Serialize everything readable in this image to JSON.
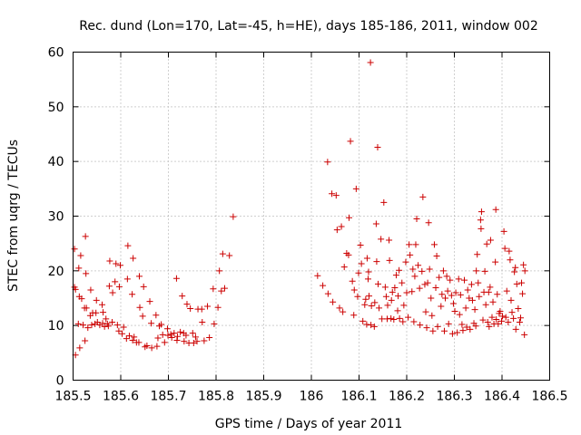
{
  "chart_data": {
    "type": "scatter",
    "title": "Rec. dund (Lon=170, Lat=-45, h=HE), days 185-186, 2011, window 002",
    "xlabel": "GPS time / Days of year 2011",
    "ylabel": "STEC from uqrg / TECUs",
    "xlim": [
      185.5,
      186.5
    ],
    "ylim": [
      0,
      60
    ],
    "grid": true,
    "marker": "plus",
    "color": "#cc0000",
    "xticks": [
      "185.5",
      "185.6",
      "185.7",
      "185.8",
      "185.9",
      "186",
      "186.1",
      "186.2",
      "186.3",
      "186.4",
      "186.5"
    ],
    "yticks": [
      "0",
      "10",
      "20",
      "30",
      "40",
      "50",
      "60"
    ],
    "series": [
      {
        "name": "STEC",
        "points": [
          [
            185.503,
            24.0
          ],
          [
            185.503,
            17.0
          ],
          [
            185.505,
            16.6
          ],
          [
            185.505,
            4.6
          ],
          [
            185.511,
            10.3
          ],
          [
            185.512,
            20.5
          ],
          [
            185.513,
            15.3
          ],
          [
            185.514,
            5.9
          ],
          [
            185.516,
            22.8
          ],
          [
            185.518,
            14.9
          ],
          [
            185.521,
            10.1
          ],
          [
            185.524,
            13.2
          ],
          [
            185.525,
            7.2
          ],
          [
            185.526,
            26.3
          ],
          [
            185.527,
            19.5
          ],
          [
            185.528,
            13.2
          ],
          [
            185.531,
            9.6
          ],
          [
            185.536,
            11.8
          ],
          [
            185.537,
            16.5
          ],
          [
            185.539,
            10.1
          ],
          [
            185.541,
            12.3
          ],
          [
            185.546,
            10.3
          ],
          [
            185.548,
            12.3
          ],
          [
            185.549,
            14.6
          ],
          [
            185.551,
            10.6
          ],
          [
            185.556,
            10.1
          ],
          [
            185.561,
            13.8
          ],
          [
            185.562,
            10.4
          ],
          [
            185.563,
            12.4
          ],
          [
            185.566,
            9.8
          ],
          [
            185.569,
            11.2
          ],
          [
            185.572,
            10.3
          ],
          [
            185.574,
            9.9
          ],
          [
            185.576,
            17.2
          ],
          [
            185.577,
            21.8
          ],
          [
            185.582,
            10.6
          ],
          [
            185.583,
            16.0
          ],
          [
            185.588,
            18.0
          ],
          [
            185.59,
            21.3
          ],
          [
            185.593,
            10.1
          ],
          [
            185.596,
            9.0
          ],
          [
            185.597,
            17.1
          ],
          [
            185.599,
            21.0
          ],
          [
            185.603,
            8.5
          ],
          [
            185.606,
            9.7
          ],
          [
            185.612,
            7.6
          ],
          [
            185.614,
            18.5
          ],
          [
            185.615,
            24.6
          ],
          [
            185.618,
            8.1
          ],
          [
            185.624,
            15.7
          ],
          [
            185.625,
            7.3
          ],
          [
            185.626,
            22.3
          ],
          [
            185.628,
            7.9
          ],
          [
            185.633,
            6.9
          ],
          [
            185.638,
            6.9
          ],
          [
            185.639,
            19.0
          ],
          [
            185.64,
            13.3
          ],
          [
            185.646,
            11.7
          ],
          [
            185.648,
            17.1
          ],
          [
            185.651,
            6.1
          ],
          [
            185.655,
            6.3
          ],
          [
            185.661,
            14.4
          ],
          [
            185.664,
            10.4
          ],
          [
            185.665,
            5.9
          ],
          [
            185.674,
            11.9
          ],
          [
            185.676,
            6.2
          ],
          [
            185.678,
            7.7
          ],
          [
            185.681,
            9.9
          ],
          [
            185.685,
            10.2
          ],
          [
            185.688,
            8.3
          ],
          [
            185.692,
            6.9
          ],
          [
            185.698,
            9.4
          ],
          [
            185.699,
            8.2
          ],
          [
            185.705,
            8.4
          ],
          [
            185.707,
            7.8
          ],
          [
            185.712,
            8.6
          ],
          [
            185.717,
            18.6
          ],
          [
            185.718,
            7.3
          ],
          [
            185.719,
            8.0
          ],
          [
            185.725,
            8.8
          ],
          [
            185.729,
            15.4
          ],
          [
            185.732,
            8.6
          ],
          [
            185.733,
            7.1
          ],
          [
            185.737,
            8.2
          ],
          [
            185.739,
            13.9
          ],
          [
            185.743,
            6.8
          ],
          [
            185.746,
            13.1
          ],
          [
            185.751,
            8.6
          ],
          [
            185.753,
            6.8
          ],
          [
            185.757,
            7.9
          ],
          [
            185.76,
            7.1
          ],
          [
            185.762,
            13.0
          ],
          [
            185.77,
            13.0
          ],
          [
            185.771,
            10.6
          ],
          [
            185.775,
            7.2
          ],
          [
            185.782,
            13.5
          ],
          [
            185.786,
            7.8
          ],
          [
            185.794,
            16.7
          ],
          [
            185.796,
            10.3
          ],
          [
            185.804,
            13.3
          ],
          [
            185.807,
            20.0
          ],
          [
            185.811,
            16.3
          ],
          [
            185.814,
            23.1
          ],
          [
            185.818,
            16.8
          ],
          [
            185.828,
            22.8
          ],
          [
            185.836,
            29.9
          ],
          [
            186.013,
            19.1
          ],
          [
            186.024,
            17.3
          ],
          [
            186.034,
            39.9
          ],
          [
            186.035,
            15.8
          ],
          [
            186.043,
            34.1
          ],
          [
            186.045,
            14.3
          ],
          [
            186.052,
            33.8
          ],
          [
            186.054,
            27.5
          ],
          [
            186.059,
            13.2
          ],
          [
            186.063,
            28.1
          ],
          [
            186.066,
            12.5
          ],
          [
            186.069,
            20.7
          ],
          [
            186.074,
            23.2
          ],
          [
            186.078,
            22.9
          ],
          [
            186.079,
            29.7
          ],
          [
            186.082,
            43.7
          ],
          [
            186.086,
            18.1
          ],
          [
            186.089,
            11.9
          ],
          [
            186.09,
            16.5
          ],
          [
            186.094,
            35.0
          ],
          [
            186.097,
            15.3
          ],
          [
            186.099,
            19.6
          ],
          [
            186.103,
            24.7
          ],
          [
            186.105,
            21.3
          ],
          [
            186.108,
            10.8
          ],
          [
            186.112,
            13.8
          ],
          [
            186.114,
            14.8
          ],
          [
            186.116,
            10.2
          ],
          [
            186.117,
            22.3
          ],
          [
            186.119,
            18.5
          ],
          [
            186.12,
            19.8
          ],
          [
            186.121,
            15.4
          ],
          [
            186.124,
            58.1
          ],
          [
            186.125,
            10.1
          ],
          [
            186.126,
            13.6
          ],
          [
            186.132,
            9.8
          ],
          [
            186.133,
            14.2
          ],
          [
            186.136,
            28.6
          ],
          [
            186.137,
            21.7
          ],
          [
            186.139,
            42.6
          ],
          [
            186.14,
            17.6
          ],
          [
            186.142,
            13.2
          ],
          [
            186.146,
            25.8
          ],
          [
            186.148,
            11.2
          ],
          [
            186.152,
            32.5
          ],
          [
            186.155,
            17.0
          ],
          [
            186.157,
            15.3
          ],
          [
            186.159,
            11.2
          ],
          [
            186.16,
            13.7
          ],
          [
            186.163,
            25.6
          ],
          [
            186.164,
            21.9
          ],
          [
            186.167,
            11.3
          ],
          [
            186.168,
            14.6
          ],
          [
            186.17,
            16.1
          ],
          [
            186.173,
            11.1
          ],
          [
            186.175,
            16.9
          ],
          [
            186.178,
            19.2
          ],
          [
            186.181,
            12.7
          ],
          [
            186.182,
            15.4
          ],
          [
            186.184,
            20.1
          ],
          [
            186.185,
            11.3
          ],
          [
            186.19,
            17.8
          ],
          [
            186.192,
            10.7
          ],
          [
            186.194,
            13.7
          ],
          [
            186.198,
            21.6
          ],
          [
            186.2,
            16.0
          ],
          [
            186.203,
            11.5
          ],
          [
            186.205,
            24.8
          ],
          [
            186.207,
            22.9
          ],
          [
            186.211,
            16.2
          ],
          [
            186.213,
            20.3
          ],
          [
            186.215,
            10.7
          ],
          [
            186.217,
            19.0
          ],
          [
            186.219,
            24.8
          ],
          [
            186.221,
            29.5
          ],
          [
            186.224,
            21.0
          ],
          [
            186.227,
            16.8
          ],
          [
            186.228,
            10.1
          ],
          [
            186.232,
            19.9
          ],
          [
            186.234,
            33.5
          ],
          [
            186.238,
            17.5
          ],
          [
            186.24,
            12.5
          ],
          [
            186.242,
            9.6
          ],
          [
            186.244,
            17.8
          ],
          [
            186.246,
            28.8
          ],
          [
            186.248,
            20.3
          ],
          [
            186.251,
            15.0
          ],
          [
            186.253,
            11.8
          ],
          [
            186.255,
            9.0
          ],
          [
            186.258,
            24.8
          ],
          [
            186.261,
            16.9
          ],
          [
            186.263,
            22.7
          ],
          [
            186.265,
            9.8
          ],
          [
            186.268,
            18.8
          ],
          [
            186.272,
            13.5
          ],
          [
            186.274,
            15.7
          ],
          [
            186.277,
            20.0
          ],
          [
            186.279,
            9.0
          ],
          [
            186.281,
            15.0
          ],
          [
            186.284,
            19.0
          ],
          [
            186.286,
            16.3
          ],
          [
            186.288,
            10.3
          ],
          [
            186.291,
            18.3
          ],
          [
            186.294,
            15.5
          ],
          [
            186.296,
            8.5
          ],
          [
            186.298,
            14.0
          ],
          [
            186.301,
            12.6
          ],
          [
            186.303,
            16.0
          ],
          [
            186.306,
            8.7
          ],
          [
            186.309,
            18.5
          ],
          [
            186.311,
            12.0
          ],
          [
            186.313,
            15.6
          ],
          [
            186.316,
            10.2
          ],
          [
            186.318,
            9.1
          ],
          [
            186.321,
            18.3
          ],
          [
            186.324,
            13.2
          ],
          [
            186.326,
            9.7
          ],
          [
            186.328,
            16.5
          ],
          [
            186.331,
            15.0
          ],
          [
            186.333,
            9.3
          ],
          [
            186.336,
            17.5
          ],
          [
            186.338,
            14.6
          ],
          [
            186.341,
            10.4
          ],
          [
            186.343,
            12.9
          ],
          [
            186.345,
            9.9
          ],
          [
            186.346,
            20.0
          ],
          [
            186.348,
            23.0
          ],
          [
            186.35,
            17.8
          ],
          [
            186.352,
            15.3
          ],
          [
            186.355,
            29.3
          ],
          [
            186.356,
            27.7
          ],
          [
            186.357,
            30.8
          ],
          [
            186.36,
            11.0
          ],
          [
            186.362,
            16.1
          ],
          [
            186.364,
            19.9
          ],
          [
            186.366,
            13.8
          ],
          [
            186.368,
            24.9
          ],
          [
            186.37,
            10.6
          ],
          [
            186.372,
            16.1
          ],
          [
            186.373,
            9.8
          ],
          [
            186.375,
            17.0
          ],
          [
            186.376,
            25.6
          ],
          [
            186.379,
            11.5
          ],
          [
            186.381,
            14.3
          ],
          [
            186.383,
            10.3
          ],
          [
            186.386,
            21.6
          ],
          [
            186.387,
            31.2
          ],
          [
            186.388,
            11.1
          ],
          [
            186.39,
            15.7
          ],
          [
            186.392,
            10.3
          ],
          [
            186.394,
            12.2
          ],
          [
            186.396,
            12.6
          ],
          [
            186.399,
            10.8
          ],
          [
            186.401,
            11.7
          ],
          [
            186.404,
            27.2
          ],
          [
            186.406,
            24.1
          ],
          [
            186.408,
            11.5
          ],
          [
            186.41,
            16.3
          ],
          [
            186.413,
            10.6
          ],
          [
            186.415,
            23.6
          ],
          [
            186.417,
            22.0
          ],
          [
            186.419,
            14.6
          ],
          [
            186.421,
            12.4
          ],
          [
            186.424,
            11.3
          ],
          [
            186.426,
            19.8
          ],
          [
            186.428,
            20.6
          ],
          [
            186.429,
            9.3
          ],
          [
            186.431,
            17.6
          ],
          [
            186.434,
            13.1
          ],
          [
            186.437,
            10.6
          ],
          [
            186.439,
            11.4
          ],
          [
            186.441,
            17.8
          ],
          [
            186.443,
            15.8
          ],
          [
            186.445,
            21.1
          ],
          [
            186.447,
            8.3
          ],
          [
            186.448,
            20.0
          ]
        ]
      }
    ]
  }
}
